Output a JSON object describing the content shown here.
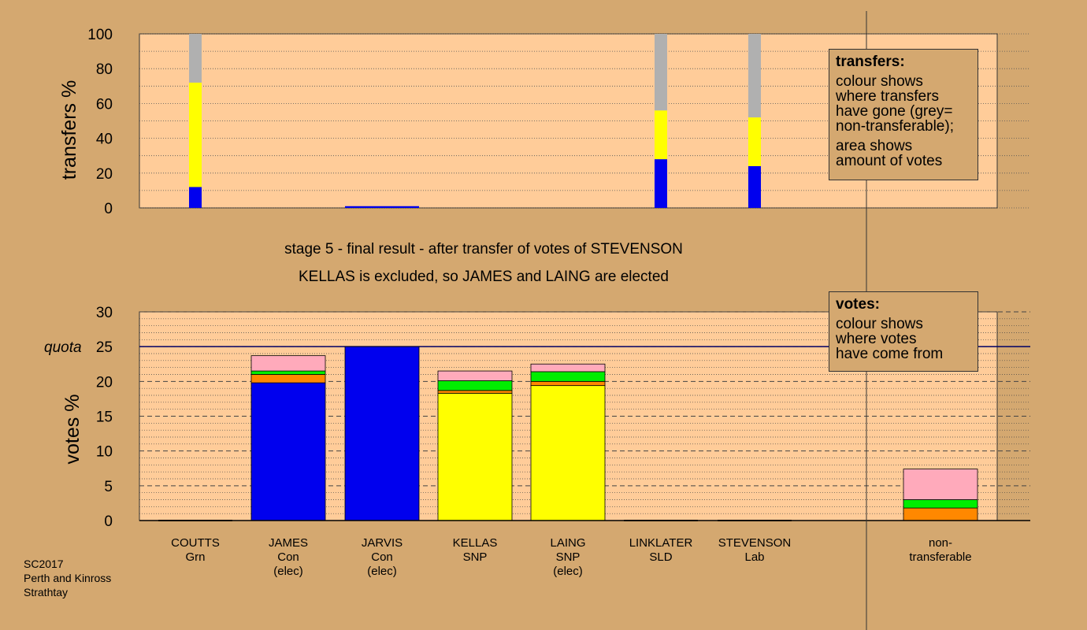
{
  "chart_data": [
    {
      "type": "bar",
      "stacked": true,
      "ylabel": "transfers %",
      "ylim": [
        0,
        100
      ],
      "yticks": [
        0,
        20,
        40,
        60,
        80,
        100
      ],
      "grid": true,
      "series_colors": {
        "Con": "#0000EE",
        "SNP": "#FFFF00",
        "non-transferable": "#B0B0B0"
      },
      "bars": [
        {
          "candidate": "COUTTS",
          "segments": [
            {
              "party": "Con",
              "value": 12
            },
            {
              "party": "SNP",
              "value": 60
            },
            {
              "party": "non-transferable",
              "value": 28
            }
          ]
        },
        {
          "candidate": "JARVIS",
          "segments": [
            {
              "party": "Con",
              "value": 1
            }
          ]
        },
        {
          "candidate": "LINKLATER",
          "segments": [
            {
              "party": "Con",
              "value": 28
            },
            {
              "party": "SNP",
              "value": 28
            },
            {
              "party": "non-transferable",
              "value": 44
            }
          ]
        },
        {
          "candidate": "STEVENSON",
          "segments": [
            {
              "party": "Con",
              "value": 24
            },
            {
              "party": "SNP",
              "value": 28
            },
            {
              "party": "non-transferable",
              "value": 48
            }
          ]
        }
      ],
      "legend": {
        "title": "transfers:",
        "lines1": [
          "colour shows",
          "where transfers",
          "have gone (grey=",
          "non-transferable);"
        ],
        "lines2": [
          "area shows",
          "amount of votes"
        ]
      }
    },
    {
      "type": "bar",
      "stacked": true,
      "ylabel": "votes %",
      "ylim": [
        0,
        30
      ],
      "yticks": [
        0,
        5,
        10,
        15,
        20,
        25,
        30
      ],
      "quota": 25,
      "quota_label": "quota",
      "grid": true,
      "series_colors": {
        "Con": "#0000EE",
        "SNP": "#FFFF00",
        "Lab": "#FFAABB",
        "Grn": "#00EE00",
        "SLD": "#FF8800"
      },
      "categories": [
        {
          "name": "COUTTS",
          "party": "Grn",
          "elected": ""
        },
        {
          "name": "JAMES",
          "party": "Con",
          "elected": "(elec)"
        },
        {
          "name": "JARVIS",
          "party": "Con",
          "elected": "(elec)"
        },
        {
          "name": "KELLAS",
          "party": "SNP",
          "elected": ""
        },
        {
          "name": "LAING",
          "party": "SNP",
          "elected": "(elec)"
        },
        {
          "name": "LINKLATER",
          "party": "SLD",
          "elected": ""
        },
        {
          "name": "STEVENSON",
          "party": "Lab",
          "elected": ""
        },
        {
          "name": "non-",
          "party": "transferable",
          "elected": ""
        }
      ],
      "bars": [
        {
          "candidate": "COUTTS",
          "segments": []
        },
        {
          "candidate": "JAMES",
          "segments": [
            {
              "party": "Con",
              "value": 19.8
            },
            {
              "party": "SLD",
              "value": 1.2
            },
            {
              "party": "Grn",
              "value": 0.5
            },
            {
              "party": "Lab",
              "value": 2.2
            }
          ]
        },
        {
          "candidate": "JARVIS",
          "segments": [
            {
              "party": "Con",
              "value": 25
            }
          ]
        },
        {
          "candidate": "KELLAS",
          "segments": [
            {
              "party": "SNP",
              "value": 18.3
            },
            {
              "party": "SLD",
              "value": 0.4
            },
            {
              "party": "Grn",
              "value": 1.4
            },
            {
              "party": "Lab",
              "value": 1.4
            }
          ]
        },
        {
          "candidate": "LAING",
          "segments": [
            {
              "party": "SNP",
              "value": 19.4
            },
            {
              "party": "SLD",
              "value": 0.6
            },
            {
              "party": "Grn",
              "value": 1.4
            },
            {
              "party": "Lab",
              "value": 1.1
            }
          ]
        },
        {
          "candidate": "LINKLATER",
          "segments": []
        },
        {
          "candidate": "STEVENSON",
          "segments": []
        },
        {
          "candidate": "non-transferable",
          "segments": [
            {
              "party": "SLD",
              "value": 1.8
            },
            {
              "party": "Grn",
              "value": 1.2
            },
            {
              "party": "Lab",
              "value": 4.4
            }
          ]
        }
      ],
      "legend": {
        "title": "votes:",
        "lines1": [
          "colour shows",
          "where votes",
          "have come from"
        ]
      }
    }
  ],
  "captions": {
    "line1": "stage 5 - final result - after transfer of votes of STEVENSON",
    "line2": "KELLAS is excluded, so JAMES and LAING are elected"
  },
  "footer": [
    "SC2017",
    "Perth and Kinross",
    "Strathtay"
  ]
}
